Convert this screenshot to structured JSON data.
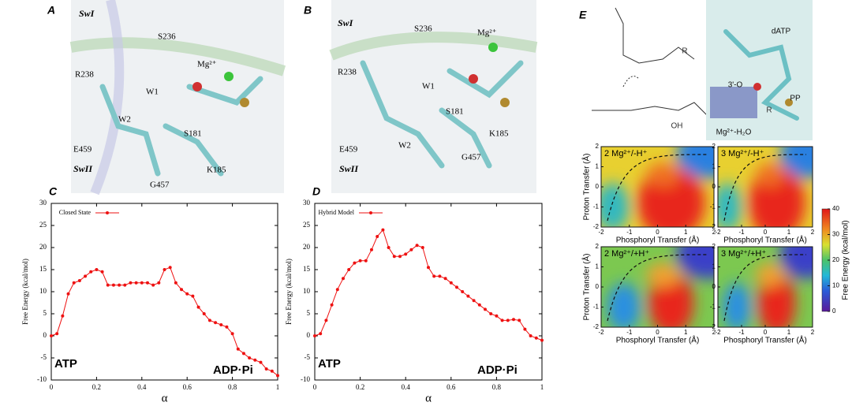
{
  "panels": {
    "a": {
      "label": "A",
      "annotations": [
        "SwI",
        "S236",
        "Mg²⁺",
        "R238",
        "W1",
        "W2",
        "E459",
        "S181",
        "SwII",
        "K185",
        "G457"
      ]
    },
    "b": {
      "label": "B",
      "annotations": [
        "SwI",
        "S236",
        "Mg²⁺",
        "R238",
        "W1",
        "S181",
        "E459",
        "W2",
        "K185",
        "SwII",
        "G457"
      ]
    },
    "e": {
      "label": "E",
      "annotations": [
        "dATP",
        "3'-O",
        "PP",
        "Mg²⁺-H₂O",
        "OH",
        "R",
        "R"
      ],
      "maps": [
        "2 Mg²⁺/-H⁺",
        "3 Mg²⁺/-H⁺",
        "2 Mg²⁺/+H⁺",
        "3 Mg²⁺/+H⁺"
      ],
      "xlabel": "Phosphoryl Transfer (Å)",
      "ylabel": "Proton Transfer (Å)",
      "xticks": [
        -2,
        -1,
        0,
        1,
        2
      ],
      "yticks": [
        -2,
        -1,
        0,
        1,
        2
      ],
      "xlim": [
        -2,
        2
      ],
      "ylim": [
        -2,
        2
      ],
      "colorbar": {
        "label": "Free Energy (kcal/mol)",
        "lim": [
          0,
          40
        ],
        "ticks": [
          0,
          10,
          20,
          30,
          40
        ]
      }
    }
  },
  "chart_data": [
    {
      "type": "line",
      "label": "C",
      "xlabel": "α",
      "ylabel": "Free Energy (kcal/mol)",
      "annotations": [
        "ATP",
        "ADP·Pi"
      ],
      "xlim": [
        0,
        1
      ],
      "ylim": [
        -10,
        30
      ],
      "xticks": [
        0,
        0.2,
        0.4,
        0.6,
        0.8,
        1
      ],
      "yticks": [
        -10,
        -5,
        0,
        5,
        10,
        15,
        20,
        25,
        30
      ],
      "legend": "top-left",
      "x": [
        0,
        0.025,
        0.05,
        0.075,
        0.1,
        0.125,
        0.15,
        0.175,
        0.2,
        0.225,
        0.25,
        0.275,
        0.3,
        0.325,
        0.35,
        0.375,
        0.4,
        0.425,
        0.45,
        0.475,
        0.5,
        0.525,
        0.55,
        0.575,
        0.6,
        0.625,
        0.65,
        0.675,
        0.7,
        0.725,
        0.75,
        0.775,
        0.8,
        0.825,
        0.85,
        0.875,
        0.9,
        0.925,
        0.95,
        0.975,
        1
      ],
      "series": [
        {
          "name": "Closed State",
          "color": "#ee1111",
          "values": [
            0,
            0.5,
            4.5,
            9.5,
            12,
            12.5,
            13.5,
            14.5,
            15,
            14.5,
            11.5,
            11.5,
            11.5,
            11.5,
            12,
            12,
            12,
            12,
            11.5,
            12,
            15,
            15.5,
            12,
            10.5,
            9.5,
            9,
            6.5,
            5,
            3.5,
            3,
            2.5,
            2,
            0.5,
            -3,
            -4,
            -5,
            -5.5,
            -6,
            -7.5,
            -8,
            -9
          ]
        }
      ]
    },
    {
      "type": "line",
      "label": "D",
      "xlabel": "α",
      "ylabel": "Free Energy (kcal/mol)",
      "annotations": [
        "ATP",
        "ADP·Pi"
      ],
      "xlim": [
        0,
        1
      ],
      "ylim": [
        -10,
        30
      ],
      "xticks": [
        0,
        0.2,
        0.4,
        0.6,
        0.8,
        1
      ],
      "yticks": [
        -10,
        -5,
        0,
        5,
        10,
        15,
        20,
        25,
        30
      ],
      "legend": "top-left",
      "x": [
        0,
        0.025,
        0.05,
        0.075,
        0.1,
        0.125,
        0.15,
        0.175,
        0.2,
        0.225,
        0.25,
        0.275,
        0.3,
        0.325,
        0.35,
        0.375,
        0.4,
        0.425,
        0.45,
        0.475,
        0.5,
        0.525,
        0.55,
        0.575,
        0.6,
        0.625,
        0.65,
        0.675,
        0.7,
        0.725,
        0.75,
        0.775,
        0.8,
        0.825,
        0.85,
        0.875,
        0.9,
        0.925,
        0.95,
        0.975,
        1
      ],
      "series": [
        {
          "name": "Hybrid Model",
          "color": "#ee1111",
          "values": [
            0,
            0.5,
            3.5,
            7,
            10.5,
            13,
            15,
            16.5,
            17,
            17,
            19.5,
            22.5,
            24,
            20,
            18,
            18,
            18.5,
            19.5,
            20.5,
            20,
            15.5,
            13.5,
            13.5,
            13,
            12,
            11,
            10,
            9,
            8,
            7,
            6,
            5,
            4.5,
            3.5,
            3.5,
            3.7,
            3.5,
            1.5,
            0,
            -0.5,
            -1
          ]
        }
      ]
    }
  ]
}
